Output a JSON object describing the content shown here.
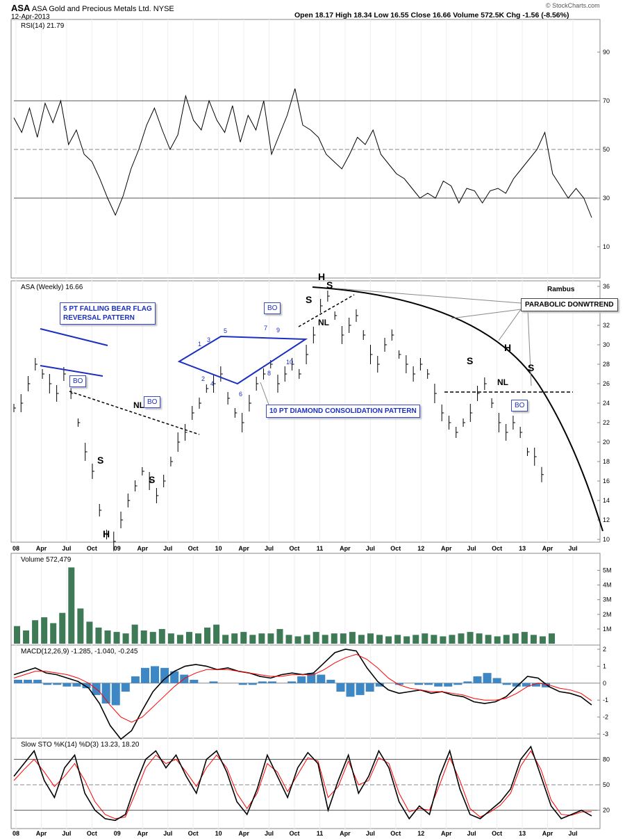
{
  "header": {
    "symbol": "ASA",
    "company": "ASA Gold and Precious Metals Ltd.",
    "exchange": "NYSE",
    "date": "12-Apr-2013",
    "ohlc": "Open 18.17  High 18.34  Low 16.55  Close 16.66  Volume 572.5K  Chg -1.56 (-8.56%)",
    "watermark": "© StockCharts.com"
  },
  "colors": {
    "price": "#000000",
    "annotation_blue": "#1a2fc0",
    "volume": "#3e7a55",
    "macd_hist": "#3d87c4",
    "signal": "#ff0000"
  },
  "x_ticks": [
    "08",
    "Apr",
    "Jul",
    "Oct",
    "09",
    "Apr",
    "Jul",
    "Oct",
    "10",
    "Apr",
    "Jul",
    "Oct",
    "11",
    "Apr",
    "Jul",
    "Oct",
    "12",
    "Apr",
    "Jul",
    "Oct",
    "13",
    "Apr",
    "Jul"
  ],
  "annotations": {
    "bear_flag": "5 PT FALLING BEAR FLAG\nREVERSAL PATTERN",
    "diamond": "10 PT DIAMOND CONSOLIDATION PATTERN",
    "parabolic": "PARABOLIC DONWTREND",
    "author": "Rambus",
    "bo": "BO"
  },
  "chart_data": [
    {
      "type": "line",
      "title": "RSI(14) 21.79",
      "ylim": [
        0,
        100
      ],
      "yticks": [
        10,
        30,
        50,
        70,
        90
      ],
      "reference_lines": [
        30,
        50,
        70
      ],
      "series": [
        {
          "values": [
            63,
            57,
            67,
            55,
            69,
            61,
            70,
            52,
            58,
            48,
            45,
            38,
            30,
            23,
            31,
            42,
            50,
            60,
            67,
            58,
            50,
            56,
            72,
            62,
            58,
            70,
            62,
            57,
            68,
            53,
            64,
            58,
            70,
            48,
            56,
            64,
            75,
            60,
            58,
            55,
            48,
            45,
            42,
            48,
            55,
            52,
            58,
            48,
            44,
            40,
            38,
            34,
            30,
            32,
            30,
            37,
            35,
            28,
            34,
            33,
            28,
            33,
            34,
            32,
            38,
            42,
            46,
            50,
            57,
            40,
            35,
            30,
            34,
            30,
            22
          ]
        }
      ]
    },
    {
      "type": "line",
      "title": "ASA (Weekly) 16.66",
      "ylim": [
        10,
        36
      ],
      "yticks": [
        10,
        12,
        14,
        16,
        18,
        20,
        22,
        24,
        26,
        28,
        30,
        32,
        34,
        36
      ],
      "series": [
        {
          "values": [
            23.5,
            24,
            26,
            28,
            27,
            26,
            25,
            27,
            25,
            22,
            19,
            17,
            13,
            10.5,
            9.8,
            12,
            14,
            15.5,
            17,
            16,
            14.5,
            16,
            18,
            20,
            21,
            23,
            24,
            25.5,
            26,
            27,
            24.5,
            23,
            22,
            24,
            26,
            27,
            28,
            26,
            27,
            28,
            27,
            29,
            31,
            34,
            35,
            33,
            31,
            32,
            33,
            31,
            29,
            28,
            30,
            31,
            29,
            28,
            27,
            28,
            27,
            25,
            23,
            22,
            21,
            22,
            23,
            25,
            26,
            24,
            22,
            21,
            22,
            21,
            19,
            18.5,
            16.66
          ]
        }
      ]
    },
    {
      "type": "bar",
      "title": "Volume 572,479",
      "yticks": [
        "1M",
        "2M",
        "3M",
        "4M",
        "5M"
      ],
      "ylim": [
        0,
        5500000
      ],
      "series": [
        {
          "values": [
            1200000,
            900000,
            1600000,
            1800000,
            1400000,
            2100000,
            5200000,
            2400000,
            1500000,
            1100000,
            900000,
            800000,
            700000,
            1300000,
            900000,
            800000,
            1000000,
            700000,
            600000,
            800000,
            700000,
            1100000,
            1300000,
            600000,
            700000,
            800000,
            600000,
            700000,
            700000,
            1000000,
            600000,
            500000,
            600000,
            800000,
            600000,
            700000,
            700000,
            800000,
            600000,
            700000,
            600000,
            500000,
            600000,
            500000,
            600000,
            700000,
            600000,
            500000,
            600000,
            700000,
            800000,
            700000,
            600000,
            500000,
            600000,
            700000,
            800000,
            600000,
            500000,
            700000
          ]
        }
      ]
    },
    {
      "type": "line",
      "title": "MACD(12,26,9) -1.285, -1.040, -0.245",
      "ylim": [
        -3,
        2
      ],
      "yticks": [
        -3,
        -2,
        -1,
        0,
        1,
        2
      ],
      "series": [
        {
          "name": "MACD(12,26,9)",
          "values": [
            0.5,
            0.7,
            0.9,
            0.6,
            0.5,
            0.3,
            0.1,
            -0.3,
            -1.2,
            -2.5,
            -3.3,
            -2.8,
            -1.6,
            -0.5,
            0.2,
            0.7,
            1.0,
            1.1,
            1.0,
            0.8,
            0.9,
            0.7,
            0.6,
            0.4,
            0.3,
            0.5,
            0.6,
            0.5,
            0.6,
            1.2,
            1.8,
            2.0,
            1.9,
            0.9,
            0.1,
            -0.4,
            -0.6,
            -0.5,
            -0.4,
            -0.6,
            -0.5,
            -0.7,
            -0.8,
            -1.1,
            -1.2,
            -1.1,
            -0.8,
            -0.2,
            0.4,
            0.3,
            -0.2,
            -0.5,
            -0.6,
            -0.8,
            -1.285
          ]
        },
        {
          "name": "signal",
          "values": [
            0.3,
            0.5,
            0.7,
            0.7,
            0.6,
            0.5,
            0.3,
            0.0,
            -0.5,
            -1.3,
            -2.0,
            -2.3,
            -2.0,
            -1.4,
            -0.8,
            -0.2,
            0.3,
            0.6,
            0.8,
            0.8,
            0.8,
            0.7,
            0.6,
            0.5,
            0.4,
            0.4,
            0.5,
            0.5,
            0.5,
            0.8,
            1.2,
            1.5,
            1.7,
            1.4,
            0.9,
            0.3,
            -0.1,
            -0.3,
            -0.4,
            -0.5,
            -0.5,
            -0.6,
            -0.7,
            -0.9,
            -1.0,
            -1.0,
            -0.9,
            -0.6,
            -0.2,
            0.0,
            -0.1,
            -0.3,
            -0.4,
            -0.6,
            -1.04
          ]
        },
        {
          "name": "histogram",
          "values": [
            0.2,
            0.2,
            0.2,
            -0.1,
            -0.1,
            -0.2,
            -0.2,
            -0.3,
            -0.7,
            -1.2,
            -1.3,
            -0.5,
            0.4,
            0.9,
            1.0,
            0.9,
            0.7,
            0.5,
            0.2,
            0.0,
            0.1,
            0.0,
            0.0,
            -0.1,
            -0.1,
            0.1,
            0.1,
            0.0,
            0.1,
            0.4,
            0.6,
            0.5,
            0.2,
            -0.5,
            -0.8,
            -0.7,
            -0.5,
            -0.2,
            0.0,
            -0.1,
            0.0,
            -0.1,
            -0.1,
            -0.2,
            -0.2,
            -0.1,
            0.1,
            0.4,
            0.6,
            0.3,
            -0.1,
            -0.2,
            -0.2,
            -0.2,
            -0.245
          ]
        }
      ]
    },
    {
      "type": "line",
      "title": "Slow STO %K(14) %D(3) 13.23, 18.20",
      "ylim": [
        0,
        100
      ],
      "yticks": [
        20,
        50,
        80
      ],
      "reference_lines": [
        20,
        50,
        80
      ],
      "series": [
        {
          "name": "%K(14)",
          "values": [
            60,
            75,
            90,
            55,
            35,
            70,
            85,
            40,
            20,
            10,
            8,
            15,
            50,
            80,
            90,
            70,
            85,
            60,
            40,
            80,
            90,
            65,
            30,
            15,
            45,
            85,
            60,
            35,
            70,
            88,
            75,
            20,
            55,
            85,
            40,
            60,
            90,
            70,
            30,
            10,
            25,
            15,
            60,
            90,
            45,
            15,
            10,
            20,
            30,
            45,
            80,
            95,
            60,
            25,
            10,
            15,
            20,
            13.23
          ]
        },
        {
          "name": "%D(3)",
          "values": [
            55,
            68,
            80,
            65,
            48,
            60,
            75,
            55,
            30,
            15,
            10,
            12,
            40,
            70,
            85,
            75,
            80,
            65,
            48,
            70,
            85,
            70,
            40,
            22,
            40,
            75,
            65,
            42,
            62,
            82,
            78,
            35,
            48,
            78,
            50,
            55,
            82,
            75,
            40,
            18,
            22,
            20,
            50,
            82,
            55,
            22,
            12,
            18,
            26,
            40,
            72,
            90,
            68,
            32,
            15,
            14,
            18,
            18.2
          ]
        }
      ]
    }
  ]
}
